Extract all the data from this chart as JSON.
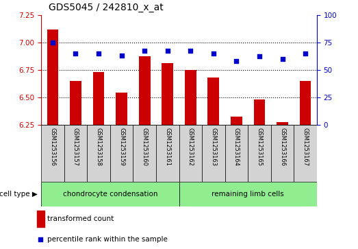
{
  "title": "GDS5045 / 242810_x_at",
  "samples": [
    "GSM1253156",
    "GSM1253157",
    "GSM1253158",
    "GSM1253159",
    "GSM1253160",
    "GSM1253161",
    "GSM1253162",
    "GSM1253163",
    "GSM1253164",
    "GSM1253165",
    "GSM1253166",
    "GSM1253167"
  ],
  "transformed_count": [
    7.12,
    6.65,
    6.73,
    6.54,
    6.87,
    6.81,
    6.75,
    6.68,
    6.32,
    6.48,
    6.27,
    6.65
  ],
  "percentile_rank": [
    75,
    65,
    65,
    63,
    67,
    67,
    67,
    65,
    58,
    62,
    60,
    65
  ],
  "group1_label": "chondrocyte condensation",
  "group2_label": "remaining limb cells",
  "group1_count": 6,
  "group2_count": 6,
  "ylim_left": [
    6.25,
    7.25
  ],
  "ylim_right": [
    0,
    100
  ],
  "yticks_left": [
    6.25,
    6.5,
    6.75,
    7.0,
    7.25
  ],
  "yticks_right": [
    0,
    25,
    50,
    75,
    100
  ],
  "bar_color": "#cc0000",
  "dot_color": "#0000cc",
  "bar_width": 0.5,
  "legend_bar_label": "transformed count",
  "legend_dot_label": "percentile rank within the sample",
  "cell_type_label": "cell type",
  "group1_color": "#90ee90",
  "group2_color": "#90ee90",
  "sample_box_color": "#d3d3d3",
  "left_axis_color": "#cc0000",
  "right_axis_color": "#0000cc",
  "title_fontsize": 10,
  "tick_fontsize": 7.5,
  "label_fontsize": 7.5,
  "sample_fontsize": 6,
  "group_fontsize": 7.5,
  "legend_fontsize": 7.5
}
